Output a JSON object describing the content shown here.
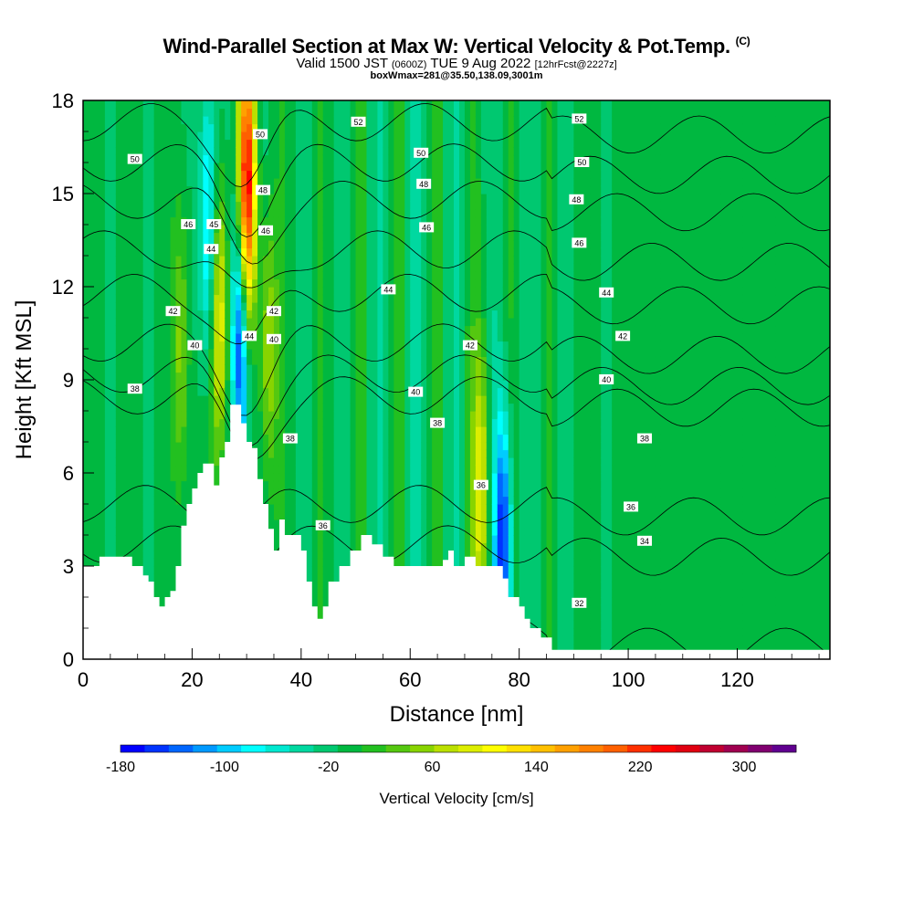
{
  "header": {
    "title": "Wind-Parallel Section at Max W: Vertical Velocity & Pot.Temp.",
    "copyright": "(C)",
    "valid_prefix": "Valid 1500 JST",
    "valid_utc": "(0600Z)",
    "valid_date": "TUE 9 Aug 2022",
    "forecast": "[12hrFcst@2227z]",
    "box_info": "boxWmax=281@35.50,138.09,3001m"
  },
  "chart_data": {
    "type": "heatmap",
    "xlabel": "Distance [nm]",
    "ylabel": "Height [Kft MSL]",
    "xlim": [
      0,
      137
    ],
    "ylim": [
      0,
      18
    ],
    "x_ticks": [
      "0",
      "20",
      "40",
      "60",
      "80",
      "100",
      "120"
    ],
    "y_ticks": [
      "0",
      "3",
      "6",
      "9",
      "12",
      "15",
      "18"
    ],
    "colorbar": {
      "title": "Vertical Velocity [cm/s]",
      "tick_labels": [
        "-180",
        "-100",
        "-20",
        "60",
        "140",
        "220",
        "300"
      ],
      "colors": [
        "#0000ff",
        "#0033ff",
        "#0066ff",
        "#0099ff",
        "#00ccff",
        "#00ffff",
        "#00e8d0",
        "#00d8a0",
        "#00c870",
        "#00b840",
        "#22c020",
        "#55c810",
        "#88d400",
        "#bbe000",
        "#ddee00",
        "#ffff00",
        "#ffe000",
        "#ffc000",
        "#ffa000",
        "#ff8000",
        "#ff6000",
        "#ff3000",
        "#ff0000",
        "#e00010",
        "#c00030",
        "#a00050",
        "#800070",
        "#600090"
      ]
    },
    "background_velocity_cm_s": -10,
    "cores": [
      {
        "x": 18,
        "y": 10,
        "w": 60,
        "type": "updraft"
      },
      {
        "x": 25,
        "y": 11,
        "w": 120,
        "type": "updraft"
      },
      {
        "x": 30,
        "y": 15,
        "w": 281,
        "type": "updraft"
      },
      {
        "x": 29,
        "y": 10.5,
        "w": -180,
        "type": "downdraft"
      },
      {
        "x": 23,
        "y": 14,
        "w": -100,
        "type": "downdraft"
      },
      {
        "x": 77,
        "y": 3.5,
        "w": -160,
        "type": "downdraft"
      },
      {
        "x": 73,
        "y": 5.5,
        "w": 100,
        "type": "updraft"
      },
      {
        "x": 34,
        "y": 10,
        "w": 80,
        "type": "updraft"
      }
    ],
    "terrain": {
      "x": [
        0,
        3,
        7,
        9,
        11,
        12,
        13,
        14,
        15,
        16,
        17,
        18,
        19,
        20,
        21,
        22,
        23,
        24,
        25,
        26,
        27,
        28,
        29,
        30,
        31,
        32,
        33,
        34,
        35,
        36,
        37,
        38,
        40,
        41,
        42,
        43,
        44,
        45,
        47,
        49,
        51,
        53,
        55,
        57,
        60,
        62,
        64,
        66,
        67,
        68,
        70,
        72,
        74,
        75,
        77,
        78,
        80,
        81,
        82,
        84,
        86,
        88,
        137
      ],
      "height_kft": [
        3,
        3.3,
        3.3,
        3,
        2.7,
        2.5,
        2,
        1.7,
        2,
        2.2,
        3,
        4.3,
        5,
        5.5,
        6,
        6.3,
        6.3,
        5.6,
        6.5,
        7,
        8.2,
        8.2,
        7.6,
        7,
        6.8,
        5.8,
        5,
        4.2,
        3.5,
        4.5,
        4,
        4,
        3.5,
        2.5,
        1.7,
        1.3,
        1.7,
        2.5,
        3,
        3.5,
        4,
        3.7,
        3.3,
        3,
        3,
        3,
        3,
        3.2,
        3.5,
        3,
        3.3,
        3,
        3,
        3,
        2.6,
        2,
        1.7,
        1.3,
        1,
        0.7,
        0.3,
        0.3,
        0.3
      ]
    },
    "contours": [
      {
        "label": "32",
        "level_kft": 0.8
      },
      {
        "label": "34",
        "level_kft": 3.7
      },
      {
        "label": "36",
        "level_kft": 5
      },
      {
        "label": "38",
        "level_kft": 8.5
      },
      {
        "label": "40",
        "level_kft": 9.2
      },
      {
        "label": "42",
        "level_kft": 10.2
      },
      {
        "label": "44",
        "level_kft": 11.8
      },
      {
        "label": "46",
        "level_kft": 13.2
      },
      {
        "label": "48",
        "level_kft": 14.8
      },
      {
        "label": "50",
        "level_kft": 16
      },
      {
        "label": "52",
        "level_kft": 17.3
      }
    ],
    "contour_labels": [
      {
        "label": "50",
        "x": 9.5,
        "y": 16.1
      },
      {
        "label": "38",
        "x": 9.5,
        "y": 8.7
      },
      {
        "label": "46",
        "x": 19.3,
        "y": 14
      },
      {
        "label": "45",
        "x": 24,
        "y": 14
      },
      {
        "label": "44",
        "x": 23.5,
        "y": 13.2
      },
      {
        "label": "42",
        "x": 16.5,
        "y": 11.2
      },
      {
        "label": "40",
        "x": 20.5,
        "y": 10.1
      },
      {
        "label": "44",
        "x": 30.5,
        "y": 10.4
      },
      {
        "label": "50",
        "x": 32.5,
        "y": 16.9
      },
      {
        "label": "48",
        "x": 33,
        "y": 15.1
      },
      {
        "label": "46",
        "x": 33.5,
        "y": 13.8
      },
      {
        "label": "42",
        "x": 35,
        "y": 11.2
      },
      {
        "label": "40",
        "x": 35,
        "y": 10.3
      },
      {
        "label": "38",
        "x": 38,
        "y": 7.1
      },
      {
        "label": "36",
        "x": 44,
        "y": 4.3
      },
      {
        "label": "52",
        "x": 50.5,
        "y": 17.3
      },
      {
        "label": "50",
        "x": 62,
        "y": 16.3
      },
      {
        "label": "48",
        "x": 62.5,
        "y": 15.3
      },
      {
        "label": "46",
        "x": 63,
        "y": 13.9
      },
      {
        "label": "44",
        "x": 56,
        "y": 11.9
      },
      {
        "label": "40",
        "x": 61,
        "y": 8.6
      },
      {
        "label": "38",
        "x": 65,
        "y": 7.6
      },
      {
        "label": "42",
        "x": 71,
        "y": 10.1
      },
      {
        "label": "36",
        "x": 73,
        "y": 5.6
      },
      {
        "label": "52",
        "x": 91,
        "y": 17.4
      },
      {
        "label": "50",
        "x": 91.5,
        "y": 16
      },
      {
        "label": "48",
        "x": 90.5,
        "y": 14.8
      },
      {
        "label": "46",
        "x": 91,
        "y": 13.4
      },
      {
        "label": "44",
        "x": 96,
        "y": 11.8
      },
      {
        "label": "42",
        "x": 99,
        "y": 10.4
      },
      {
        "label": "40",
        "x": 96,
        "y": 9
      },
      {
        "label": "38",
        "x": 103,
        "y": 7.1
      },
      {
        "label": "36",
        "x": 100.5,
        "y": 4.9
      },
      {
        "label": "34",
        "x": 103,
        "y": 3.8
      },
      {
        "label": "32",
        "x": 91,
        "y": 1.8
      }
    ]
  }
}
